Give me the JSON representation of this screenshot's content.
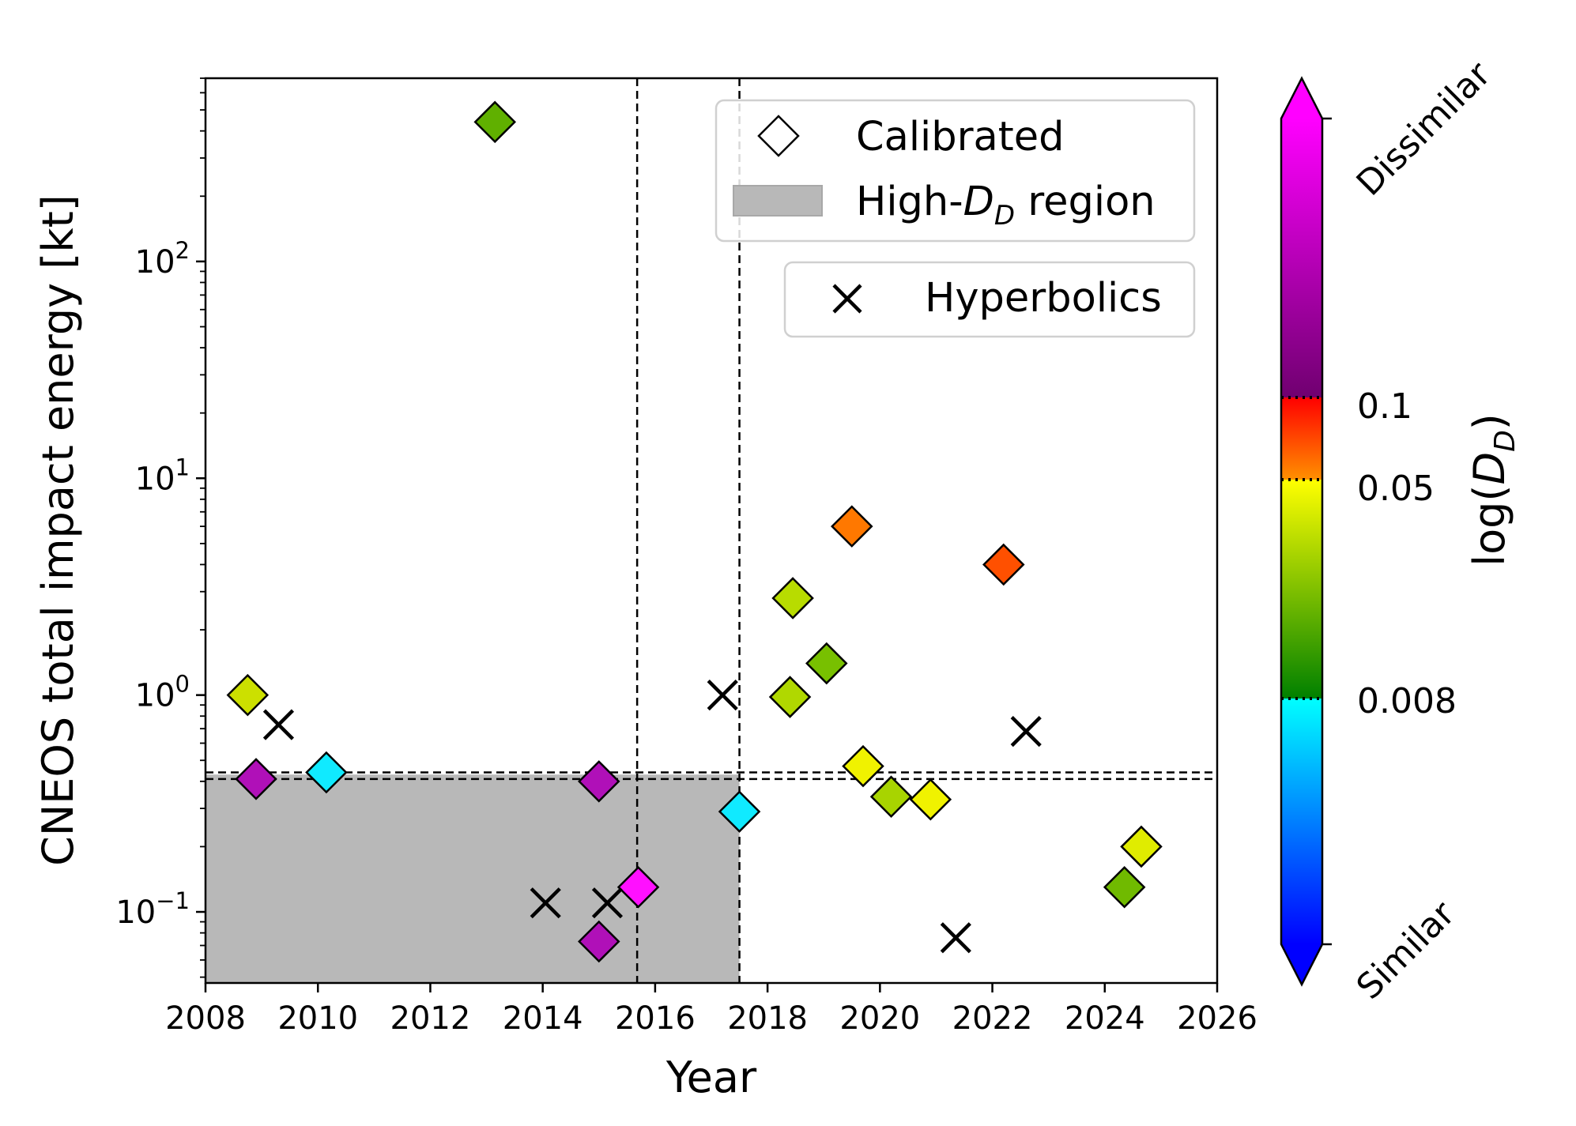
{
  "chart_data": {
    "type": "scatter",
    "xlabel": "Year",
    "ylabel": "CNEOS total impact energy [kt]",
    "x_scale": "linear",
    "y_scale": "log",
    "xlim": [
      2008,
      2026
    ],
    "ylim": [
      0.047,
      700
    ],
    "x_ticks": [
      2008,
      2010,
      2012,
      2014,
      2016,
      2018,
      2020,
      2022,
      2024,
      2026
    ],
    "x_tick_labels": [
      "2008",
      "2010",
      "2012",
      "2014",
      "2016",
      "2018",
      "2020",
      "2022",
      "2024",
      "2026"
    ],
    "y_ticks": [
      {
        "value": 0.1,
        "base": "10",
        "exp": "−1"
      },
      {
        "value": 1,
        "base": "10",
        "exp": "0"
      },
      {
        "value": 10,
        "base": "10",
        "exp": "1"
      },
      {
        "value": 100,
        "base": "10",
        "exp": "2"
      }
    ],
    "vlines": [
      2015.68,
      2017.5
    ],
    "hlines": [
      0.41,
      0.44
    ],
    "high_dd_region": {
      "x": [
        2008,
        2017.5
      ],
      "y": [
        0.047,
        0.43
      ],
      "color": "#b8b8b8"
    },
    "series": [
      {
        "name": "Calibrated",
        "marker": "diamond",
        "points": [
          {
            "x": 2008.75,
            "y": 1.0,
            "color": "#cce000"
          },
          {
            "x": 2008.9,
            "y": 0.41,
            "color": "#b010b8"
          },
          {
            "x": 2010.15,
            "y": 0.44,
            "color": "#10eaff"
          },
          {
            "x": 2013.15,
            "y": 440,
            "color": "#60b000"
          },
          {
            "x": 2015.0,
            "y": 0.4,
            "color": "#b010b8"
          },
          {
            "x": 2015.0,
            "y": 0.073,
            "color": "#b010b8"
          },
          {
            "x": 2015.7,
            "y": 0.13,
            "color": "#ff10ff"
          },
          {
            "x": 2017.5,
            "y": 0.29,
            "color": "#10eaff"
          },
          {
            "x": 2018.4,
            "y": 0.98,
            "color": "#b0d800"
          },
          {
            "x": 2018.45,
            "y": 2.8,
            "color": "#b8dc00"
          },
          {
            "x": 2019.05,
            "y": 1.4,
            "color": "#78c000"
          },
          {
            "x": 2019.5,
            "y": 6.0,
            "color": "#ff7800"
          },
          {
            "x": 2019.7,
            "y": 0.47,
            "color": "#f0f200"
          },
          {
            "x": 2020.2,
            "y": 0.34,
            "color": "#a8d400"
          },
          {
            "x": 2020.9,
            "y": 0.33,
            "color": "#f0f200"
          },
          {
            "x": 2022.2,
            "y": 4.0,
            "color": "#ff5000"
          },
          {
            "x": 2024.35,
            "y": 0.13,
            "color": "#70ba00"
          },
          {
            "x": 2024.65,
            "y": 0.2,
            "color": "#e0ec00"
          }
        ]
      },
      {
        "name": "Hyperbolics",
        "marker": "x",
        "points": [
          {
            "x": 2009.3,
            "y": 0.73
          },
          {
            "x": 2014.05,
            "y": 0.11
          },
          {
            "x": 2015.15,
            "y": 0.11
          },
          {
            "x": 2017.2,
            "y": 1.0
          },
          {
            "x": 2021.35,
            "y": 0.076
          },
          {
            "x": 2022.6,
            "y": 0.68
          }
        ]
      }
    ],
    "legend": {
      "placement": "top-right",
      "calibrated_label": "Calibrated",
      "region_label_prefix": "High-",
      "region_label_var": "D",
      "region_label_sub": "D",
      "region_label_suffix": " region",
      "hyperbolics_label": "Hyperbolics"
    },
    "colorbar": {
      "label_prefix": "log(",
      "label_var": "D",
      "label_sub": "D",
      "label_suffix": ")",
      "top_label": "Dissimilar",
      "bottom_label": "Similar",
      "ticks": [
        "0.1",
        "0.05",
        "0.008"
      ],
      "stops": [
        "#0000ff",
        "#00ffff",
        "#008000",
        "#ffff00",
        "#ff0000",
        "#7f007f",
        "#ff00ff"
      ]
    }
  }
}
